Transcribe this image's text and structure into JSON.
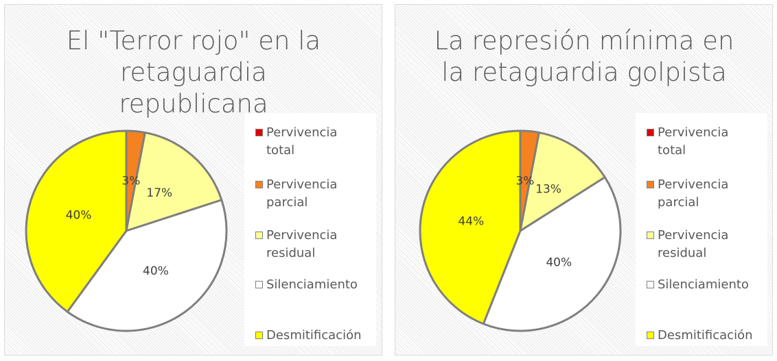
{
  "chart_data": [
    {
      "type": "pie",
      "title": "El \"Terror rojo\" en la retaguardia republicana",
      "categories": [
        "Pervivencia total",
        "Pervivencia parcial",
        "Pervivencia residual",
        "Silenciamiento",
        "Desmitificación"
      ],
      "values": [
        0,
        3,
        17,
        40,
        40
      ],
      "value_labels": [
        null,
        "3%",
        "17%",
        "40%",
        "40%"
      ],
      "colors": [
        "#e00000",
        "#f58220",
        "#ffff99",
        "#ffffff",
        "#ffff00"
      ],
      "legend": "right"
    },
    {
      "type": "pie",
      "title": "La represión mínima en la retaguardia golpista",
      "categories": [
        "Pervivencia total",
        "Pervivencia parcial",
        "Pervivencia residual",
        "Silenciamiento",
        "Desmitificación"
      ],
      "values": [
        0,
        3,
        13,
        40,
        44
      ],
      "value_labels": [
        null,
        "3%",
        "13%",
        "40%",
        "44%"
      ],
      "colors": [
        "#e00000",
        "#f58220",
        "#ffff99",
        "#ffffff",
        "#ffff00"
      ],
      "legend": "right"
    }
  ]
}
